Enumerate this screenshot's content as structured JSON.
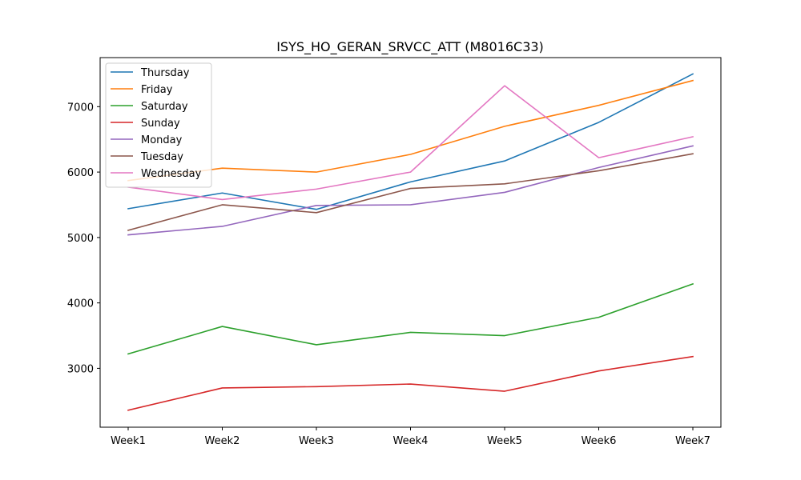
{
  "chart_data": {
    "type": "line",
    "title": "ISYS_HO_GERAN_SRVCC_ATT (M8016C33)",
    "xlabel": "",
    "ylabel": "",
    "categories": [
      "Week1",
      "Week2",
      "Week3",
      "Week4",
      "Week5",
      "Week6",
      "Week7"
    ],
    "ylim": [
      2100,
      7750
    ],
    "yticks": [
      3000,
      4000,
      5000,
      6000,
      7000
    ],
    "grid": false,
    "legend_position": "upper-left",
    "series": [
      {
        "name": "Thursday",
        "color": "#1f77b4",
        "values": [
          5440,
          5680,
          5430,
          5850,
          6170,
          6760,
          7500
        ]
      },
      {
        "name": "Friday",
        "color": "#ff7f0e",
        "values": [
          5870,
          6060,
          6000,
          6270,
          6700,
          7020,
          7400
        ]
      },
      {
        "name": "Saturday",
        "color": "#2ca02c",
        "values": [
          3220,
          3640,
          3360,
          3550,
          3500,
          3780,
          4290
        ]
      },
      {
        "name": "Sunday",
        "color": "#d62728",
        "values": [
          2360,
          2700,
          2720,
          2760,
          2650,
          2960,
          3180
        ]
      },
      {
        "name": "Monday",
        "color": "#9467bd",
        "values": [
          5040,
          5170,
          5490,
          5500,
          5690,
          6070,
          6400
        ]
      },
      {
        "name": "Tuesday",
        "color": "#8c564b",
        "values": [
          5110,
          5500,
          5380,
          5750,
          5820,
          6020,
          6280
        ]
      },
      {
        "name": "Wednesday",
        "color": "#e377c2",
        "values": [
          5770,
          5580,
          5740,
          6000,
          7320,
          6220,
          6540
        ]
      }
    ]
  }
}
